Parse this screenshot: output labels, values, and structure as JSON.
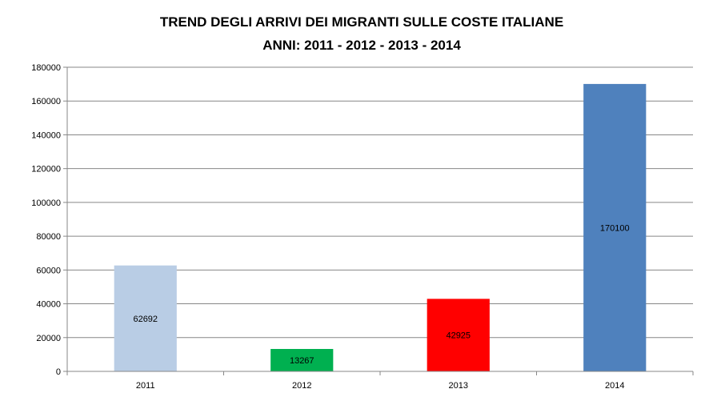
{
  "chart_data": {
    "type": "bar",
    "title": [
      "TREND DEGLI ARRIVI DEI MIGRANTI SULLE COSTE ITALIANE",
      "ANNI: 2011 - 2012 - 2013 - 2014"
    ],
    "categories": [
      "2011",
      "2012",
      "2013",
      "2014"
    ],
    "values": [
      62692,
      13267,
      42925,
      170100
    ],
    "data_labels": [
      "62692",
      "13267",
      "42925",
      "170100"
    ],
    "bar_colors": [
      "#b9cde5",
      "#00b050",
      "#ff0000",
      "#4f81bd"
    ],
    "ylim": [
      0,
      180000
    ],
    "yticks": [
      0,
      20000,
      40000,
      60000,
      80000,
      100000,
      120000,
      140000,
      160000,
      180000
    ],
    "ytick_labels": [
      "0",
      "20000",
      "40000",
      "60000",
      "80000",
      "100000",
      "120000",
      "140000",
      "160000",
      "180000"
    ],
    "grid": true,
    "legend": "none"
  }
}
